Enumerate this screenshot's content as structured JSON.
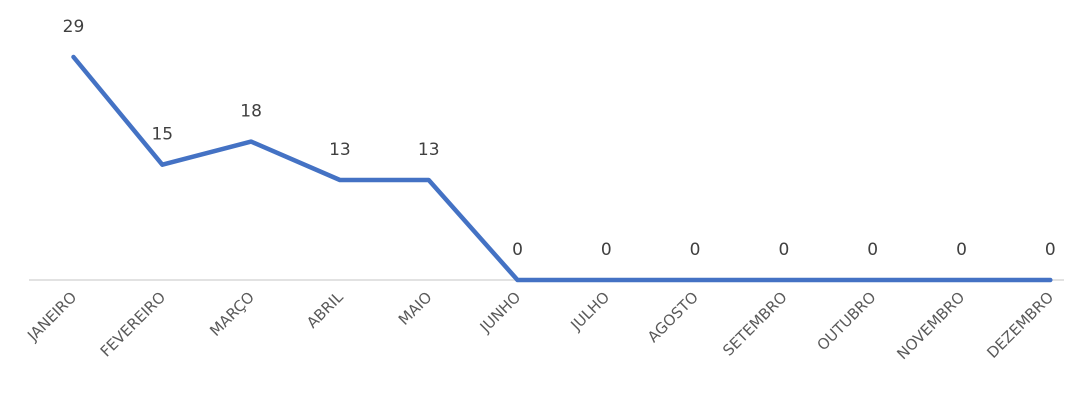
{
  "chart_data": {
    "type": "line",
    "categories": [
      "JANEIRO",
      "FEVEREIRO",
      "MARÇO",
      "ABRIL",
      "MAIO",
      "JUNHO",
      "JULHO",
      "AGOSTO",
      "SETEMBRO",
      "OUTUBRO",
      "NOVEMBRO",
      "DEZEMBRO"
    ],
    "series": [
      {
        "values": [
          29,
          15,
          18,
          13,
          13,
          0,
          0,
          0,
          0,
          0,
          0,
          0
        ],
        "color": "#4472C4"
      }
    ],
    "title": "",
    "xlabel": "",
    "ylabel": "",
    "ylim": [
      0,
      29
    ],
    "grid": false,
    "legend": "none",
    "axis_color": "#D9D9D9"
  }
}
